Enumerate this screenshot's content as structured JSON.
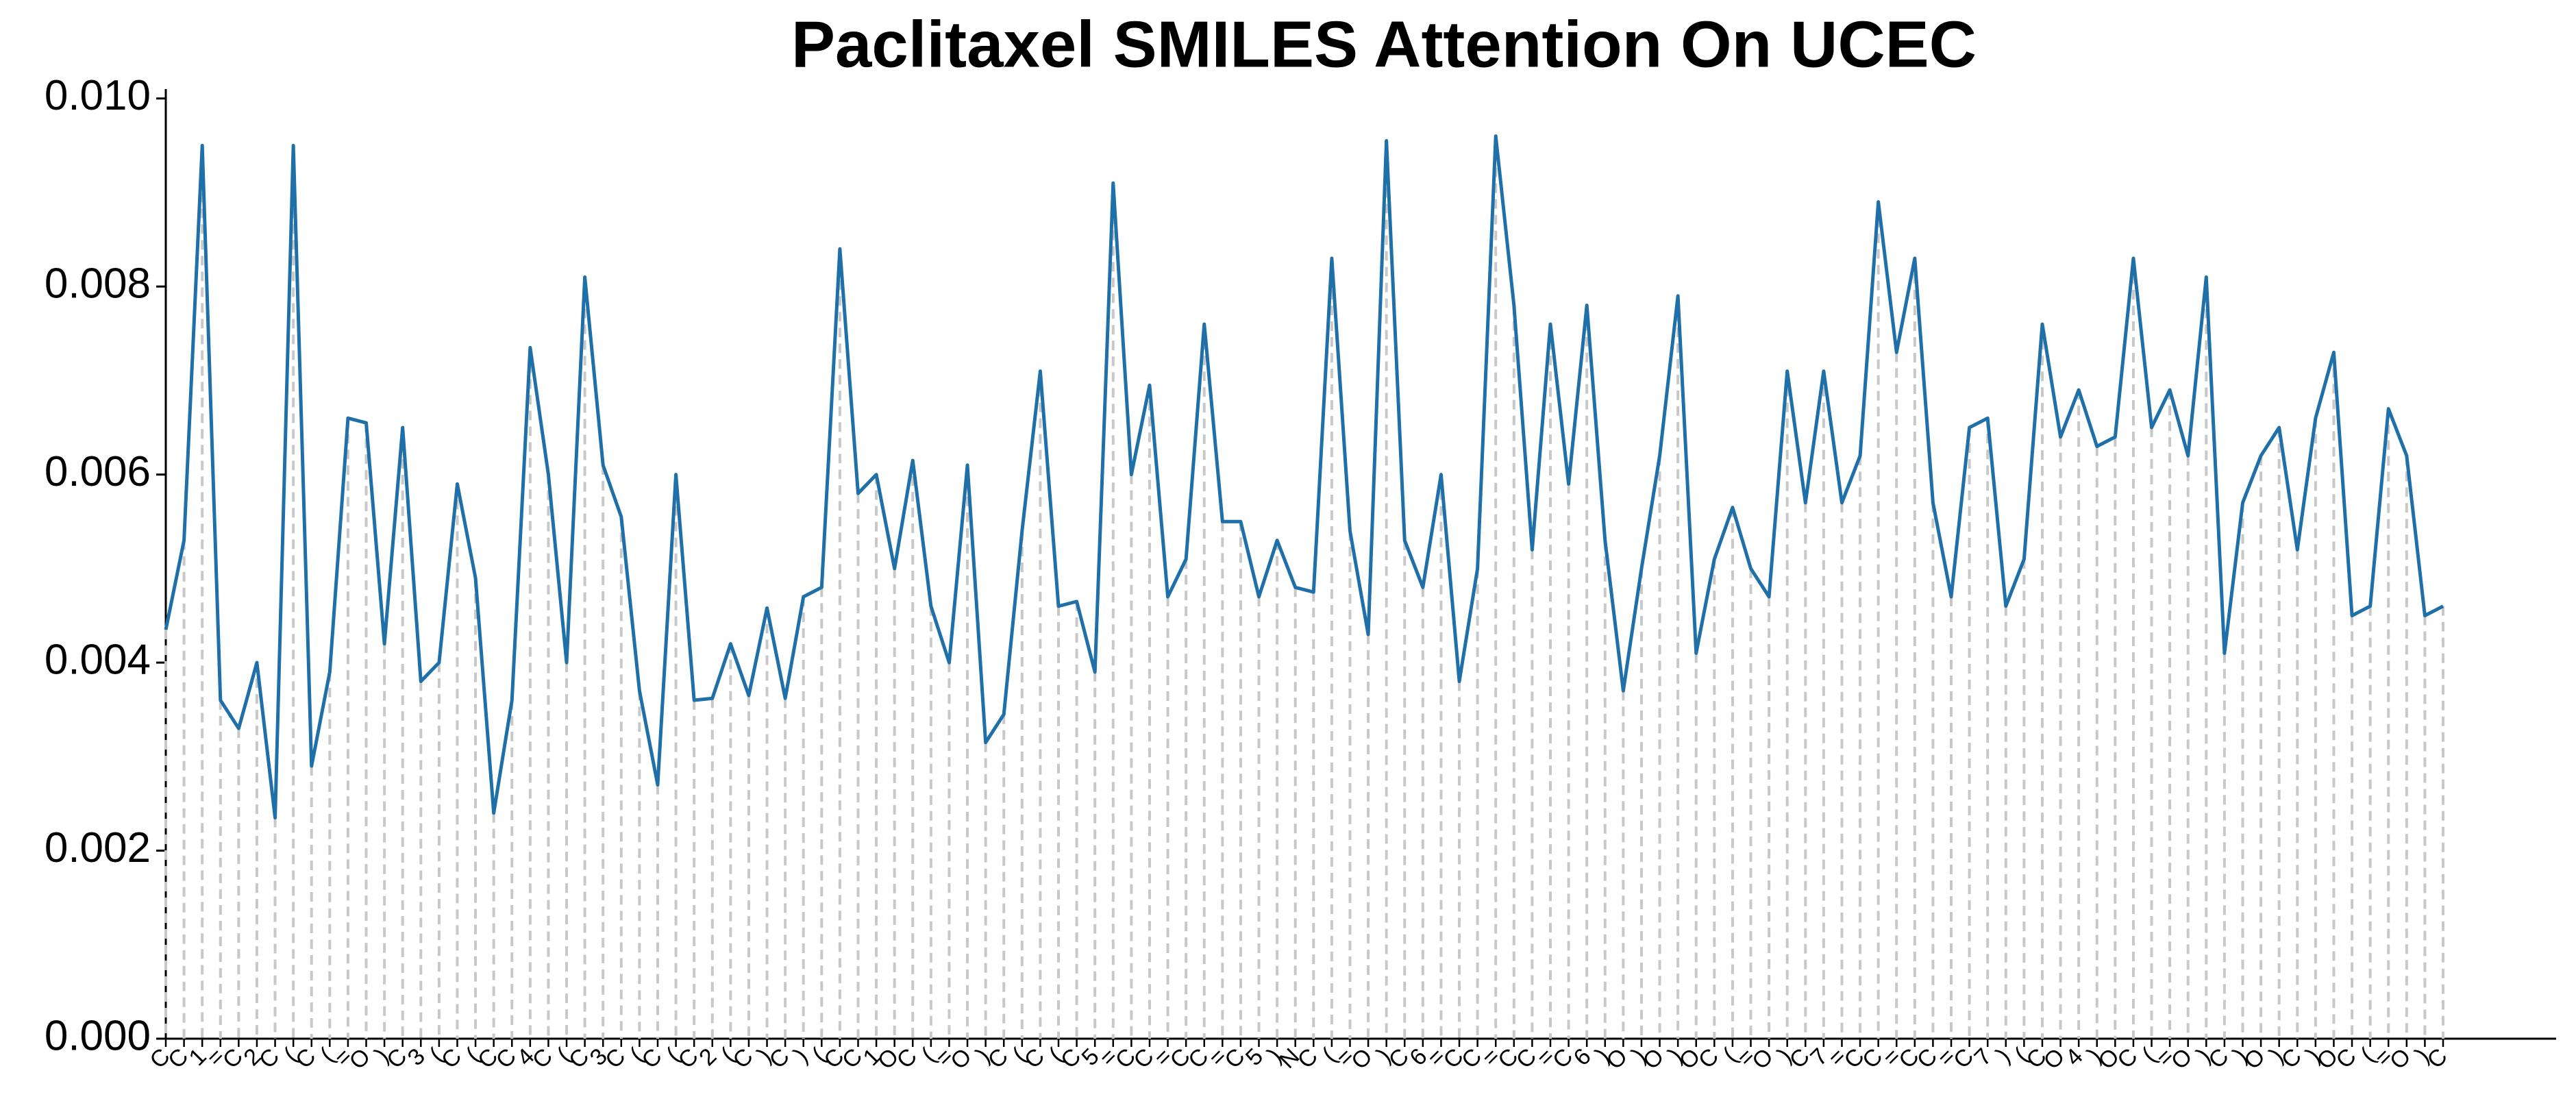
{
  "chart_data": {
    "type": "line",
    "title": "Paclitaxel SMILES Attention On UCEC",
    "categories": [
      "C",
      "C",
      "1",
      "=",
      "C",
      "2",
      "C",
      "(",
      "C",
      "(",
      "=",
      "O",
      ")",
      "C",
      "3",
      "(",
      "C",
      "(",
      "C",
      "C",
      "4",
      "C",
      "(",
      "C",
      "3",
      "C",
      "(",
      "C",
      "(",
      "C",
      "2",
      "(",
      "C",
      ")",
      "C",
      ")",
      "(",
      "C",
      "C",
      "1",
      "O",
      "C",
      "(",
      "=",
      "O",
      ")",
      "C",
      "(",
      "C",
      "(",
      "C",
      "5",
      "=",
      "C",
      "C",
      "=",
      "C",
      "C",
      "=",
      "C",
      "5",
      ")",
      "N",
      "C",
      "(",
      "=",
      "O",
      ")",
      "C",
      "6",
      "=",
      "C",
      "C",
      "=",
      "C",
      "C",
      "=",
      "C",
      "6",
      ")",
      "O",
      ")",
      "O",
      ")",
      "O",
      "C",
      "(",
      "=",
      "O",
      ")",
      "C",
      "7",
      "=",
      "C",
      "C",
      "=",
      "C",
      "C",
      "=",
      "C",
      "7",
      ")",
      "(",
      "C",
      "O",
      "4",
      ")",
      "O",
      "C",
      "(",
      "=",
      "O",
      ")",
      "C",
      ")",
      "O",
      ")",
      "C",
      ")",
      "O",
      "C",
      "(",
      "=",
      "O",
      ")",
      "C"
    ],
    "series": [
      {
        "color": "#1f6fa8",
        "values": [
          0.00435,
          0.0053,
          0.0095,
          0.0036,
          0.0033,
          0.004,
          0.00235,
          0.0095,
          0.0029,
          0.0039,
          0.0066,
          0.00655,
          0.0042,
          0.0065,
          0.0038,
          0.004,
          0.0059,
          0.0049,
          0.0024,
          0.0036,
          0.00735,
          0.006,
          0.004,
          0.0081,
          0.0061,
          0.00555,
          0.0037,
          0.0027,
          0.006,
          0.0036,
          0.00362,
          0.0042,
          0.00365,
          0.00458,
          0.00362,
          0.0047,
          0.0048,
          0.0084,
          0.0058,
          0.006,
          0.005,
          0.00615,
          0.0046,
          0.004,
          0.0061,
          0.00315,
          0.00345,
          0.0054,
          0.0071,
          0.0046,
          0.00465,
          0.0039,
          0.0091,
          0.006,
          0.00695,
          0.0047,
          0.0051,
          0.0076,
          0.0055,
          0.0055,
          0.0047,
          0.0053,
          0.0048,
          0.00475,
          0.0083,
          0.0054,
          0.0043,
          0.00955,
          0.0053,
          0.0048,
          0.006,
          0.0038,
          0.005,
          0.0096,
          0.0078,
          0.0052,
          0.0076,
          0.0059,
          0.0078,
          0.0053,
          0.0037,
          0.005,
          0.0062,
          0.0079,
          0.0041,
          0.0051,
          0.00565,
          0.005,
          0.0047,
          0.0071,
          0.0057,
          0.0071,
          0.0057,
          0.0062,
          0.0089,
          0.0073,
          0.0083,
          0.0057,
          0.0047,
          0.0065,
          0.0066,
          0.0046,
          0.0051,
          0.0076,
          0.0064,
          0.0069,
          0.0063,
          0.0064,
          0.0083,
          0.0065,
          0.0069,
          0.0062,
          0.0081,
          0.0041,
          0.0057,
          0.0062,
          0.0065,
          0.0052,
          0.0066,
          0.0073,
          0.0045,
          0.0046,
          0.0067,
          0.0062,
          0.0045,
          0.0046
        ]
      }
    ],
    "ylim": [
      0,
      0.0101
    ],
    "yticks": [
      {
        "value": 0,
        "label": "0.000"
      },
      {
        "value": 0.002,
        "label": "0.002"
      },
      {
        "value": 0.004,
        "label": "0.004"
      },
      {
        "value": 0.006,
        "label": "0.006"
      },
      {
        "value": 0.008,
        "label": "0.008"
      },
      {
        "value": 0.01,
        "label": "0.010"
      }
    ],
    "drop_line_color": "#c8c8c8"
  }
}
